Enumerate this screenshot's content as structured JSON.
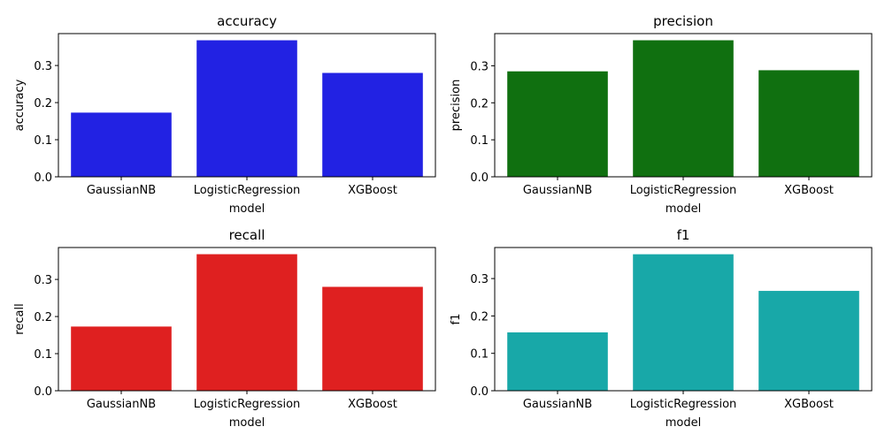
{
  "chart_data": [
    {
      "type": "bar",
      "title": "accuracy",
      "xlabel": "model",
      "ylabel": "accuracy",
      "categories": [
        "GaussianNB",
        "LogisticRegression",
        "XGBoost"
      ],
      "values": [
        0.173,
        0.368,
        0.28
      ],
      "ylim": [
        0,
        0.386
      ],
      "yticks": [
        0.0,
        0.1,
        0.2,
        0.3
      ],
      "ytick_labels": [
        "0.0",
        "0.1",
        "0.2",
        "0.3"
      ],
      "color": "#2222e3",
      "grid": false,
      "legend": "none"
    },
    {
      "type": "bar",
      "title": "precision",
      "xlabel": "model",
      "ylabel": "precision",
      "categories": [
        "GaussianNB",
        "LogisticRegression",
        "XGBoost"
      ],
      "values": [
        0.285,
        0.369,
        0.288
      ],
      "ylim": [
        0,
        0.387
      ],
      "yticks": [
        0.0,
        0.1,
        0.2,
        0.3
      ],
      "ytick_labels": [
        "0.0",
        "0.1",
        "0.2",
        "0.3"
      ],
      "color": "#107010",
      "grid": false,
      "legend": "none"
    },
    {
      "type": "bar",
      "title": "recall",
      "xlabel": "model",
      "ylabel": "recall",
      "categories": [
        "GaussianNB",
        "LogisticRegression",
        "XGBoost"
      ],
      "values": [
        0.173,
        0.368,
        0.28
      ],
      "ylim": [
        0,
        0.386
      ],
      "yticks": [
        0.0,
        0.1,
        0.2,
        0.3
      ],
      "ytick_labels": [
        "0.0",
        "0.1",
        "0.2",
        "0.3"
      ],
      "color": "#df2020",
      "grid": false,
      "legend": "none"
    },
    {
      "type": "bar",
      "title": "f1",
      "xlabel": "model",
      "ylabel": "f1",
      "categories": [
        "GaussianNB",
        "LogisticRegression",
        "XGBoost"
      ],
      "values": [
        0.156,
        0.365,
        0.267
      ],
      "ylim": [
        0,
        0.383
      ],
      "yticks": [
        0.0,
        0.1,
        0.2,
        0.3
      ],
      "ytick_labels": [
        "0.0",
        "0.1",
        "0.2",
        "0.3"
      ],
      "color": "#18a8a8",
      "grid": false,
      "legend": "none"
    }
  ]
}
